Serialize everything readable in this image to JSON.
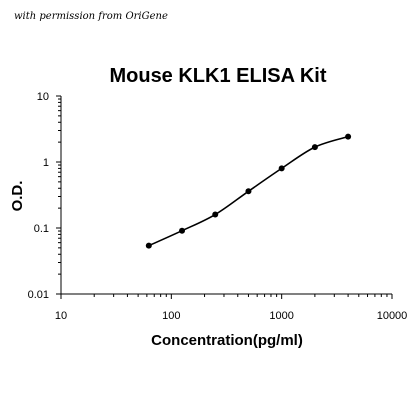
{
  "watermark": "with permission from OriGene",
  "chart_data": {
    "type": "scatter",
    "title": "Mouse KLK1 ELISA Kit",
    "xlabel": "Concentration(pg/ml)",
    "ylabel": "O.D.",
    "xscale": "log",
    "yscale": "log",
    "xlim": [
      10,
      10000
    ],
    "ylim": [
      0.01,
      10
    ],
    "x_ticks": [
      "10",
      "100",
      "1000",
      "10000"
    ],
    "y_ticks": [
      "0.01",
      "0.1",
      "1",
      "10"
    ],
    "grid": false,
    "legend": "none",
    "series": [
      {
        "x": [
          62.5,
          125,
          250,
          500,
          1000,
          2000,
          4000
        ],
        "y": [
          0.054,
          0.091,
          0.16,
          0.36,
          0.8,
          1.68,
          2.42
        ]
      }
    ],
    "trendline": "smooth fitted curve through points"
  }
}
